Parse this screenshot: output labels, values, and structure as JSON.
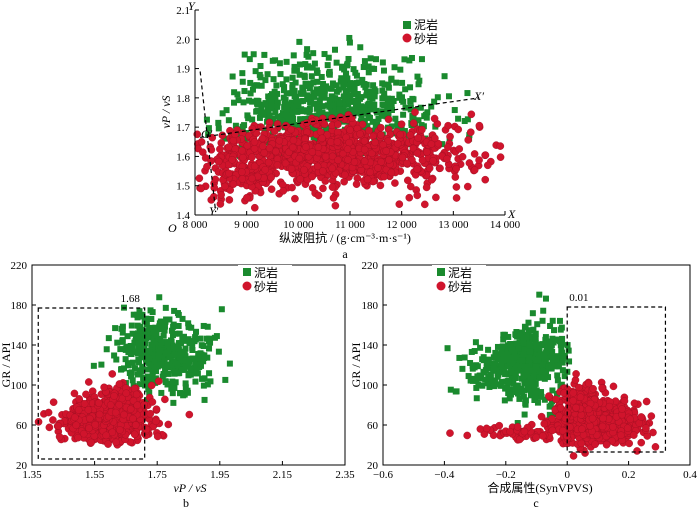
{
  "chart_data": [
    {
      "id": "a",
      "type": "scatter",
      "panel_label": "a",
      "xlabel": "纵波阻抗 / (g·cm⁻³·m·s⁻¹)",
      "ylabel": "vP / vS",
      "xlim": [
        8000,
        14000
      ],
      "ylim": [
        1.4,
        2.1
      ],
      "xticks": [
        8000,
        9000,
        10000,
        11000,
        12000,
        13000,
        14000
      ],
      "xtick_labels": [
        "8 000",
        "9 000",
        "10 000",
        "11 000",
        "12 000",
        "13 000",
        "14 000"
      ],
      "yticks": [
        1.4,
        1.5,
        1.6,
        1.7,
        1.8,
        1.9,
        2.0,
        2.1
      ],
      "ytick_labels": [
        "1.4",
        "1.5",
        "1.6",
        "1.7",
        "1.8",
        "1.9",
        "2.0",
        "2.1"
      ],
      "axis_names": {
        "origin": "O",
        "x": "X",
        "y": "Y",
        "x_rot": "X′",
        "y_rot": "Y′",
        "o_rot": "O′"
      },
      "legend": [
        "泥岩",
        "砂岩"
      ],
      "legend_position": "top-right",
      "series": [
        {
          "name": "泥岩",
          "marker": "square",
          "color": "#1a8a2e",
          "clusters": [
            {
              "cx": 10500,
              "cy": 1.79,
              "sx": 900,
              "sy": 0.085,
              "n": 420
            },
            {
              "cx": 9700,
              "cy": 1.7,
              "sx": 600,
              "sy": 0.07,
              "n": 120
            },
            {
              "cx": 11500,
              "cy": 1.74,
              "sx": 700,
              "sy": 0.05,
              "n": 120
            }
          ]
        },
        {
          "name": "砂岩",
          "marker": "circle",
          "color": "#d0142c",
          "clusters": [
            {
              "cx": 10900,
              "cy": 1.61,
              "sx": 1200,
              "sy": 0.055,
              "n": 900
            },
            {
              "cx": 8900,
              "cy": 1.57,
              "sx": 450,
              "sy": 0.07,
              "n": 180
            }
          ]
        }
      ],
      "rotated_axes": {
        "x_axis_from": [
          8100,
          1.665
        ],
        "x_axis_to": [
          13500,
          1.8
        ],
        "y_axis_from": [
          8100,
          1.89
        ],
        "y_axis_to": [
          8400,
          1.41
        ]
      }
    },
    {
      "id": "b",
      "type": "scatter",
      "panel_label": "b",
      "xlabel": "vP / vS",
      "ylabel": "GR / API",
      "xlim": [
        1.35,
        2.35
      ],
      "ylim": [
        20,
        220
      ],
      "xticks": [
        1.35,
        1.55,
        1.75,
        1.95,
        2.15,
        2.35
      ],
      "xtick_labels": [
        "1.35",
        "1.55",
        "1.75",
        "1.95",
        "2.15",
        "2.35"
      ],
      "yticks": [
        20,
        60,
        100,
        140,
        180,
        220
      ],
      "ytick_labels": [
        "20",
        "60",
        "100",
        "140",
        "180",
        "220"
      ],
      "legend": [
        "泥岩",
        "砂岩"
      ],
      "legend_position": "top-right",
      "cutoff_label": "1.68",
      "cutoff_box": {
        "x0": 1.37,
        "x1": 1.71,
        "y0": 26,
        "y1": 177
      },
      "series": [
        {
          "name": "泥岩",
          "marker": "square",
          "color": "#1a8a2e",
          "clusters": [
            {
              "cx": 1.78,
              "cy": 128,
              "sx": 0.08,
              "sy": 18,
              "n": 360
            },
            {
              "cx": 1.72,
              "cy": 150,
              "sx": 0.04,
              "sy": 12,
              "n": 80
            }
          ]
        },
        {
          "name": "砂岩",
          "marker": "circle",
          "color": "#d0142c",
          "clusters": [
            {
              "cx": 1.59,
              "cy": 63,
              "sx": 0.07,
              "sy": 9,
              "n": 700
            },
            {
              "cx": 1.63,
              "cy": 85,
              "sx": 0.05,
              "sy": 9,
              "n": 150
            }
          ]
        }
      ]
    },
    {
      "id": "c",
      "type": "scatter",
      "panel_label": "c",
      "xlabel": "合成属性(SynVPVS)",
      "ylabel": "GR / API",
      "xlim": [
        -0.6,
        0.4
      ],
      "ylim": [
        20,
        220
      ],
      "xticks": [
        -0.6,
        -0.4,
        -0.2,
        0,
        0.2,
        0.4
      ],
      "xtick_labels": [
        "−0.6",
        "−0.4",
        "−0.2",
        "0",
        "0.2",
        "0.4"
      ],
      "yticks": [
        20,
        60,
        100,
        140,
        180,
        220
      ],
      "ytick_labels": [
        "20",
        "60",
        "100",
        "140",
        "180",
        "220"
      ],
      "legend": [
        "泥岩",
        "砂岩"
      ],
      "legend_position": "top-left",
      "cutoff_label": "0.01",
      "cutoff_box": {
        "x0": 0.0,
        "x1": 0.32,
        "y0": 33,
        "y1": 178
      },
      "series": [
        {
          "name": "泥岩",
          "marker": "square",
          "color": "#1a8a2e",
          "clusters": [
            {
              "cx": -0.12,
              "cy": 122,
              "sx": 0.06,
              "sy": 20,
              "n": 380
            },
            {
              "cx": -0.25,
              "cy": 118,
              "sx": 0.06,
              "sy": 14,
              "n": 90
            }
          ]
        },
        {
          "name": "砂岩",
          "marker": "circle",
          "color": "#d0142c",
          "clusters": [
            {
              "cx": 0.09,
              "cy": 62,
              "sx": 0.07,
              "sy": 10,
              "n": 650
            },
            {
              "cx": 0.05,
              "cy": 85,
              "sx": 0.04,
              "sy": 9,
              "n": 120
            },
            {
              "cx": -0.15,
              "cy": 52,
              "sx": 0.08,
              "sy": 4,
              "n": 60
            }
          ]
        }
      ]
    }
  ]
}
